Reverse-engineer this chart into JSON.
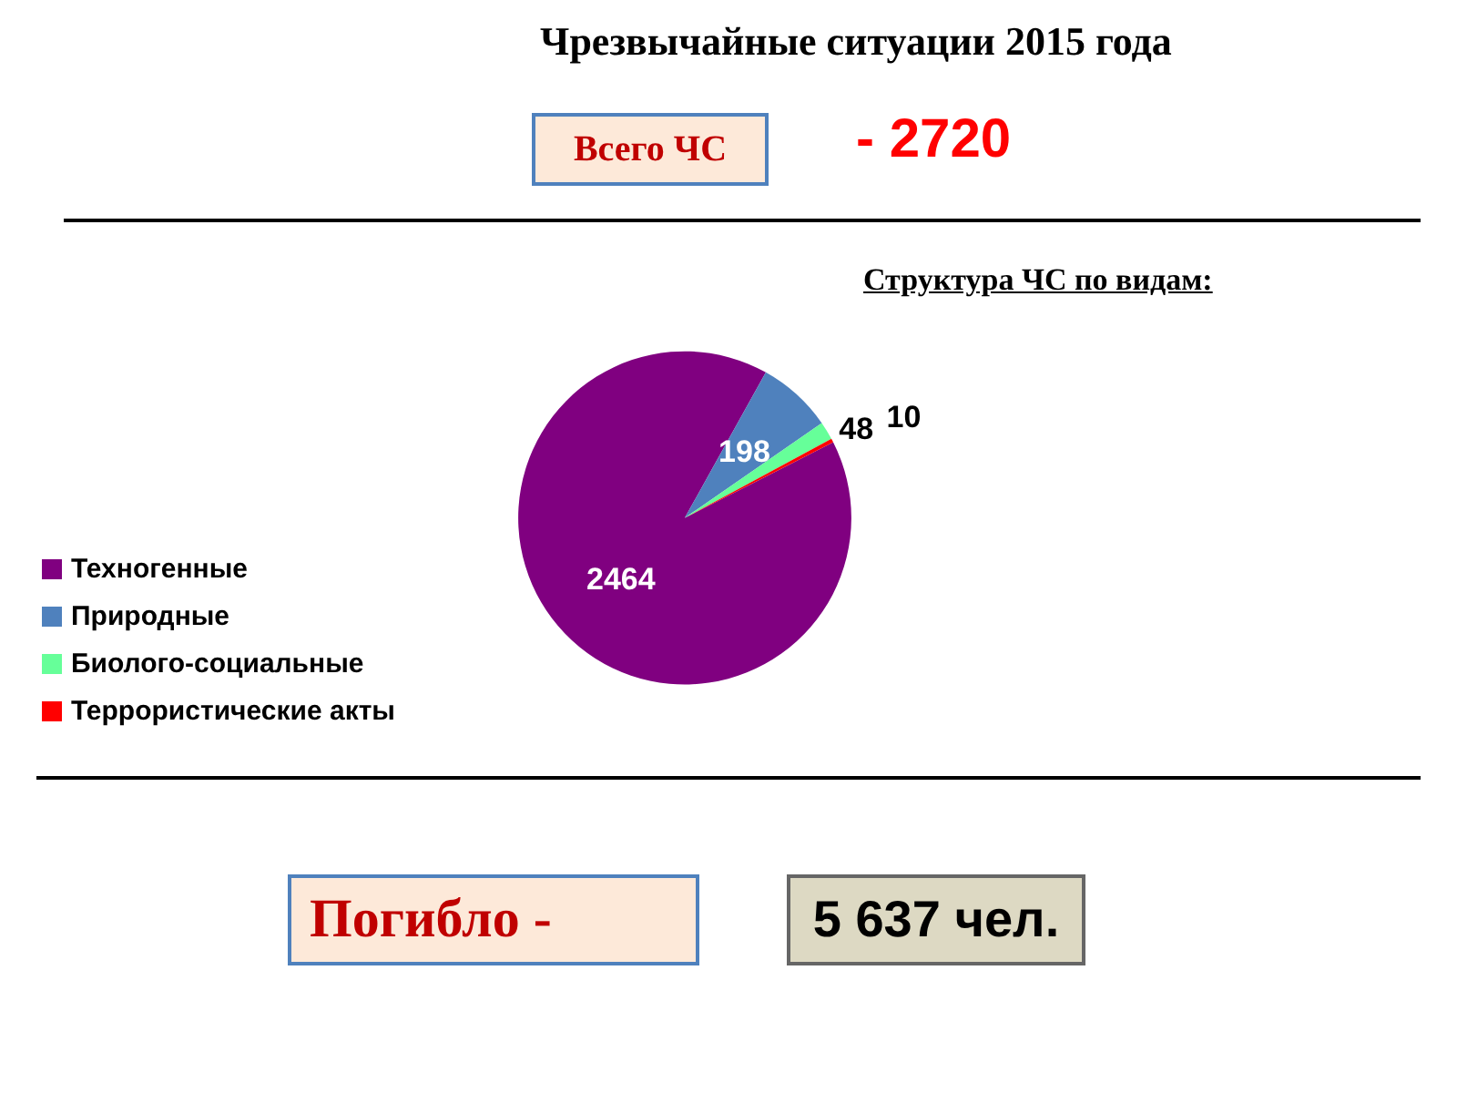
{
  "chart_data": {
    "type": "pie",
    "title": "Чрезвычайные ситуации 2015 года",
    "subtitle": "Структура ЧС по видам:",
    "categories": [
      "Техногенные",
      "Природные",
      "Биолого-социальные",
      "Террористические акты"
    ],
    "values": [
      2464,
      198,
      48,
      10
    ],
    "colors": [
      "#800080",
      "#4f81bd",
      "#66ff99",
      "#ff0000"
    ],
    "data_labels": true,
    "legend": "left",
    "annotations": [
      "Всего ЧС",
      "- 2720",
      "Погибло -",
      "5 637 чел."
    ]
  }
}
